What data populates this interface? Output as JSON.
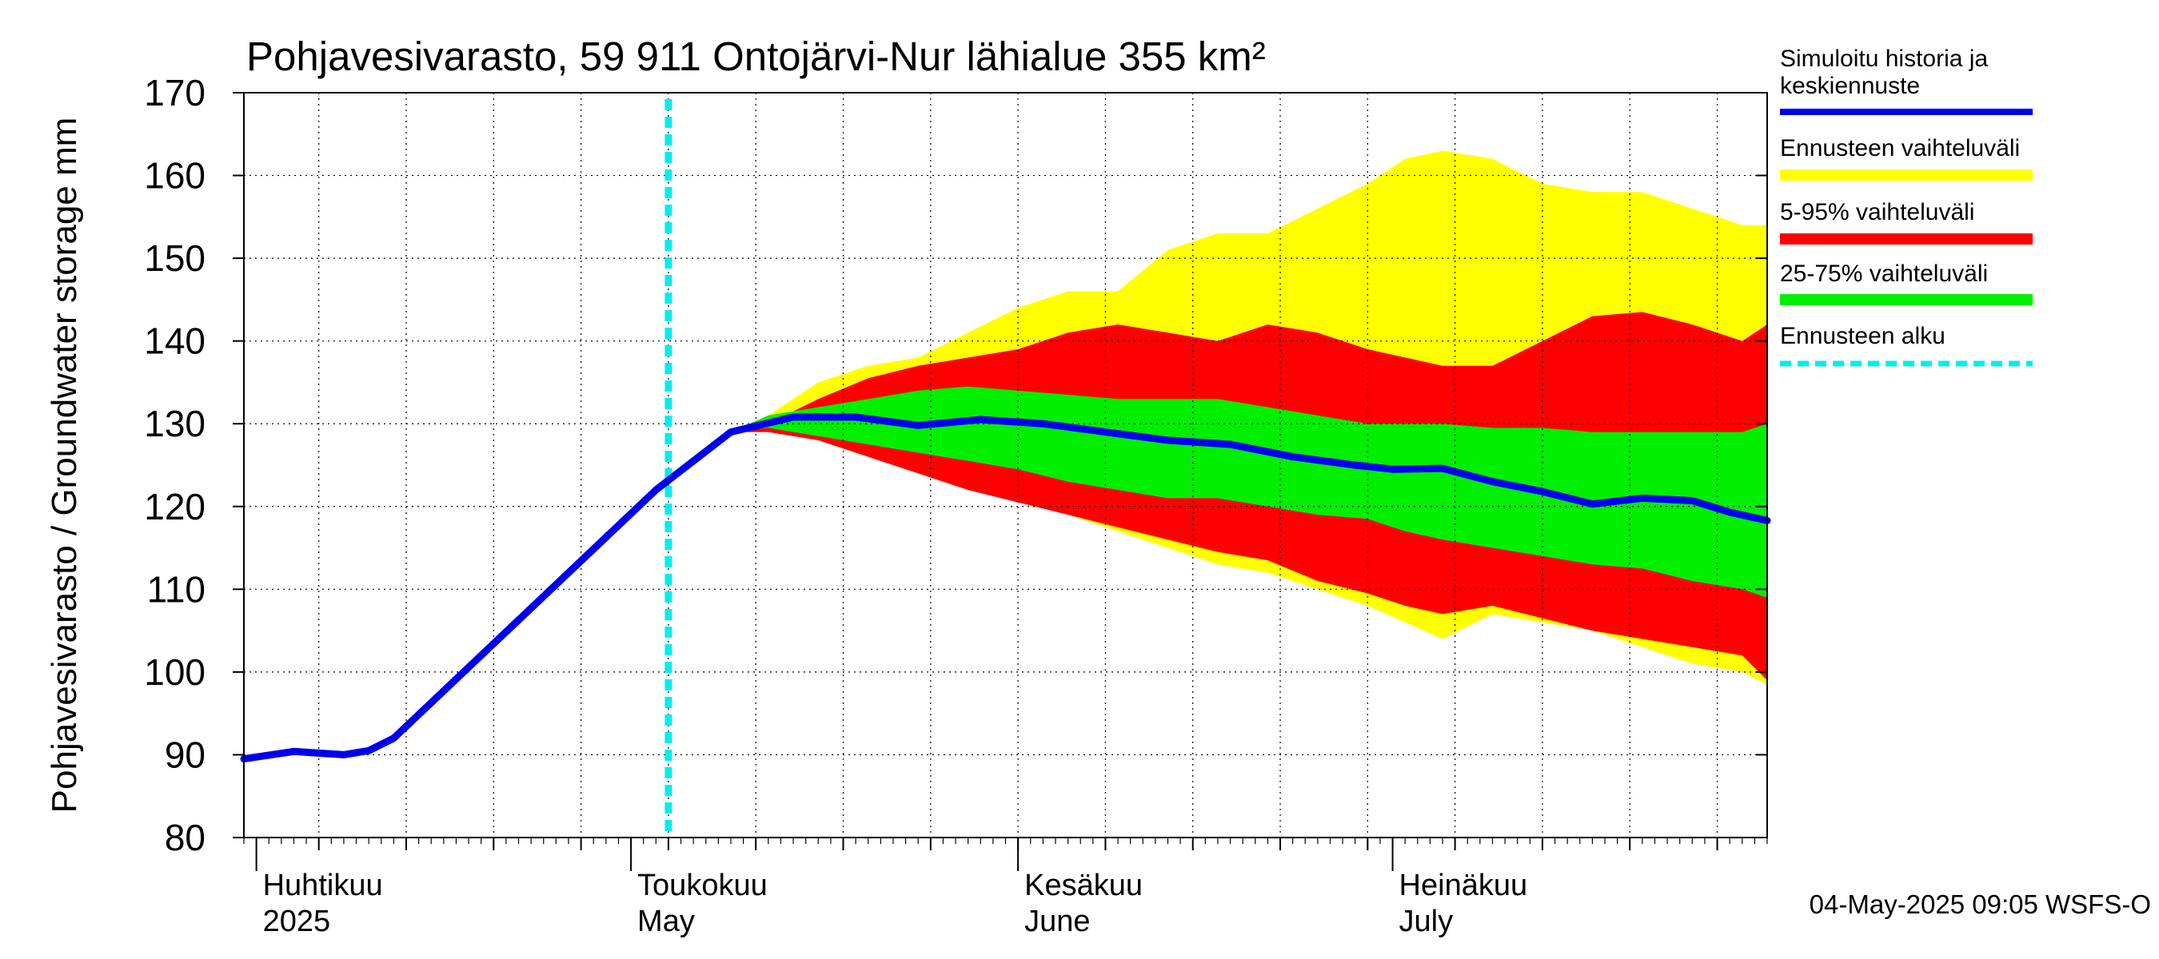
{
  "chart_data": {
    "type": "area",
    "title": "Pohjavesivarasto, 59 911 Ontojärvi-Nur lähialue 355 km²",
    "ylabel": "Pohjavesivarasto / Groundwater storage   mm",
    "ylim": [
      80,
      170
    ],
    "yticks": [
      80,
      90,
      100,
      110,
      120,
      130,
      140,
      150,
      160,
      170
    ],
    "xlim": [
      "2025-03-31",
      "2025-07-31"
    ],
    "grid": true,
    "month_labels": [
      {
        "date": "2025-04-01",
        "fi": "Huhtikuu",
        "en": "2025"
      },
      {
        "date": "2025-05-01",
        "fi": "Toukokuu",
        "en": "May"
      },
      {
        "date": "2025-06-01",
        "fi": "Kesäkuu",
        "en": "June"
      },
      {
        "date": "2025-07-01",
        "fi": "Heinäkuu",
        "en": "July"
      }
    ],
    "forecast_start": "2025-05-04",
    "legend": [
      {
        "label": "Simuloitu historia ja keskiennuste",
        "color": "#0000ee",
        "style": "solid"
      },
      {
        "label": "Ennusteen vaihteluväli",
        "color": "#ffff00",
        "style": "solid"
      },
      {
        "label": "5-95% vaihteluväli",
        "color": "#ff0000",
        "style": "solid"
      },
      {
        "label": "25-75% vaihteluväli",
        "color": "#00ee00",
        "style": "solid"
      },
      {
        "label": "Ennusteen alku",
        "color": "#00eeee",
        "style": "dashed"
      }
    ],
    "footer": "04-May-2025 09:05 WSFS-O",
    "series": [
      {
        "name": "Ennusteen vaihteluväli",
        "color": "#ffff00",
        "x": [
          "2025-05-09",
          "2025-05-12",
          "2025-05-16",
          "2025-05-20",
          "2025-05-24",
          "2025-05-28",
          "2025-06-01",
          "2025-06-05",
          "2025-06-09",
          "2025-06-13",
          "2025-06-17",
          "2025-06-21",
          "2025-06-25",
          "2025-06-29",
          "2025-07-02",
          "2025-07-05",
          "2025-07-09",
          "2025-07-13",
          "2025-07-17",
          "2025-07-21",
          "2025-07-25",
          "2025-07-29",
          "2025-07-31"
        ],
        "upper": [
          129,
          131,
          135,
          137,
          138,
          141,
          144,
          146,
          146,
          151,
          153,
          153,
          156,
          159,
          162,
          163,
          162,
          159,
          158,
          158,
          156,
          154,
          154
        ],
        "lower": [
          129,
          129,
          128,
          126,
          124,
          122,
          121,
          119,
          117,
          115,
          113,
          112,
          110,
          108,
          106,
          104,
          107,
          106,
          105,
          103,
          101,
          100,
          98.5
        ]
      },
      {
        "name": "5-95% vaihteluväli",
        "color": "#ff0000",
        "x": [
          "2025-05-09",
          "2025-05-12",
          "2025-05-16",
          "2025-05-20",
          "2025-05-24",
          "2025-05-28",
          "2025-06-01",
          "2025-06-05",
          "2025-06-09",
          "2025-06-13",
          "2025-06-17",
          "2025-06-21",
          "2025-06-25",
          "2025-06-29",
          "2025-07-02",
          "2025-07-05",
          "2025-07-09",
          "2025-07-13",
          "2025-07-17",
          "2025-07-21",
          "2025-07-25",
          "2025-07-29",
          "2025-07-31"
        ],
        "upper": [
          129,
          130,
          133,
          135.5,
          137,
          138,
          139,
          141,
          142,
          141,
          140,
          142,
          141,
          139,
          138,
          137,
          137,
          140,
          143,
          143.5,
          142,
          140,
          142
        ],
        "lower": [
          129,
          129,
          128,
          126,
          124,
          122,
          120.5,
          119,
          117.5,
          116,
          114.5,
          113.5,
          111,
          109.5,
          108,
          107,
          108,
          106.5,
          105,
          104,
          103,
          102,
          99
        ]
      },
      {
        "name": "25-75% vaihteluväli",
        "color": "#00ee00",
        "x": [
          "2025-05-09",
          "2025-05-12",
          "2025-05-16",
          "2025-05-20",
          "2025-05-24",
          "2025-05-28",
          "2025-06-01",
          "2025-06-05",
          "2025-06-09",
          "2025-06-13",
          "2025-06-17",
          "2025-06-21",
          "2025-06-25",
          "2025-06-29",
          "2025-07-02",
          "2025-07-05",
          "2025-07-09",
          "2025-07-13",
          "2025-07-17",
          "2025-07-21",
          "2025-07-25",
          "2025-07-29",
          "2025-07-31"
        ],
        "upper": [
          129,
          131,
          132,
          133,
          134,
          134.5,
          134,
          133.5,
          133,
          133,
          133,
          132,
          131,
          130,
          130,
          130,
          129.5,
          129.5,
          129,
          129,
          129,
          129,
          130
        ],
        "lower": [
          129,
          129.5,
          128.5,
          127.5,
          126.5,
          125.5,
          124.5,
          123,
          122,
          121,
          121,
          120,
          119,
          118.5,
          117,
          116,
          115,
          114,
          113,
          112.5,
          111,
          110,
          109
        ]
      },
      {
        "name": "Simuloitu historia ja keskiennuste",
        "color": "#0000ee",
        "x": [
          "2025-03-31",
          "2025-04-04",
          "2025-04-08",
          "2025-04-10",
          "2025-04-12",
          "2025-05-03",
          "2025-05-09",
          "2025-05-14",
          "2025-05-19",
          "2025-05-24",
          "2025-05-29",
          "2025-06-03",
          "2025-06-08",
          "2025-06-13",
          "2025-06-18",
          "2025-06-23",
          "2025-06-28",
          "2025-07-01",
          "2025-07-05",
          "2025-07-09",
          "2025-07-13",
          "2025-07-17",
          "2025-07-21",
          "2025-07-25",
          "2025-07-28",
          "2025-07-31"
        ],
        "values": [
          89.5,
          90.4,
          90,
          90.5,
          92,
          122,
          129,
          130.8,
          130.8,
          129.8,
          130.5,
          130,
          129,
          128,
          127.5,
          126,
          125,
          124.5,
          124.6,
          123,
          121.8,
          120.3,
          121,
          120.7,
          119.3,
          118.3
        ]
      }
    ]
  }
}
